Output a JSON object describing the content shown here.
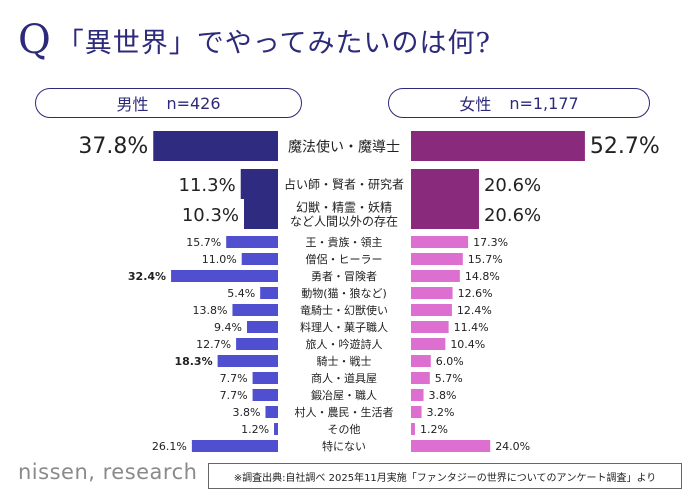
{
  "title": {
    "q": "Q",
    "text": "「異世界」でやってみたいのは何?"
  },
  "groups": {
    "male": {
      "label": "男性",
      "n": "n=426",
      "color": "#2e2b80",
      "small_color": "#4f4fcf"
    },
    "female": {
      "label": "女性",
      "n": "n=1,177",
      "color": "#8a2a7c",
      "small_color": "#dd6fd0"
    }
  },
  "chart_data": {
    "type": "bar",
    "orientation": "horizontal-butterfly",
    "title": "「異世界」でやってみたいのは何?",
    "categories": [
      "魔法使い・魔導士",
      "占い師・賢者・研究者",
      "幻獣・精霊・妖精など人間以外の存在",
      "王・貴族・領主",
      "僧侶・ヒーラー",
      "勇者・冒険者",
      "動物(猫・狼など)",
      "竜騎士・幻獣使い",
      "料理人・菓子職人",
      "旅人・吟遊詩人",
      "騎士・戦士",
      "商人・道具屋",
      "鍛冶屋・職人",
      "村人・農民・生活者",
      "その他",
      "特にない"
    ],
    "category_lines": [
      [
        "魔法使い・魔導士"
      ],
      [
        "占い師・賢者・研究者"
      ],
      [
        "幻獣・精霊・妖精",
        "など人間以外の存在"
      ],
      [
        "王・貴族・領主"
      ],
      [
        "僧侶・ヒーラー"
      ],
      [
        "勇者・冒険者"
      ],
      [
        "動物(猫・狼など)"
      ],
      [
        "竜騎士・幻獣使い"
      ],
      [
        "料理人・菓子職人"
      ],
      [
        "旅人・吟遊詩人"
      ],
      [
        "騎士・戦士"
      ],
      [
        "商人・道具屋"
      ],
      [
        "鍛冶屋・職人"
      ],
      [
        "村人・農民・生活者"
      ],
      [
        "その他"
      ],
      [
        "特にない"
      ]
    ],
    "series": [
      {
        "name": "男性 n=426",
        "values": [
          37.8,
          11.3,
          10.3,
          15.7,
          11.0,
          32.4,
          5.4,
          13.8,
          9.4,
          12.7,
          18.3,
          7.7,
          7.7,
          3.8,
          1.2,
          26.1
        ],
        "labels": [
          "37.8%",
          "11.3%",
          "10.3%",
          "15.7%",
          "11.0%",
          "32.4%",
          "5.4%",
          "13.8%",
          "9.4%",
          "12.7%",
          "18.3%",
          "7.7%",
          "7.7%",
          "3.8%",
          "1.2%",
          "26.1%"
        ],
        "bold_labels": [
          5,
          10
        ]
      },
      {
        "name": "女性 n=1,177",
        "values": [
          52.7,
          20.6,
          20.6,
          17.3,
          15.7,
          14.8,
          12.6,
          12.4,
          11.4,
          10.4,
          6.0,
          5.7,
          3.8,
          3.2,
          1.2,
          24.0
        ],
        "labels": [
          "52.7%",
          "20.6%",
          "20.6%",
          "17.3%",
          "15.7%",
          "14.8%",
          "12.6%",
          "12.4%",
          "11.4%",
          "10.4%",
          "6.0%",
          "5.7%",
          "3.8%",
          "3.2%",
          "1.2%",
          "24.0%"
        ]
      }
    ],
    "highlight_rows": 3,
    "unit": "%"
  },
  "footer": {
    "logo": "nissen, research",
    "source": "※調査出典:自社調べ 2025年11月実施「ファンタジーの世界についてのアンケート調査」より"
  }
}
